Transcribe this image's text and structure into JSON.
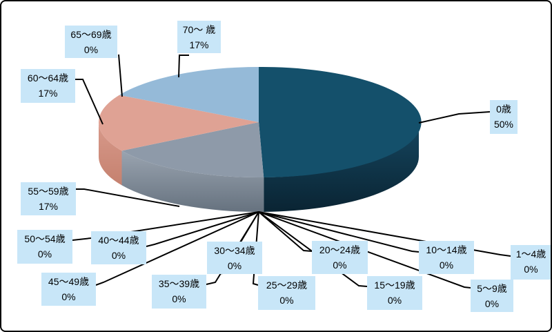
{
  "chart_data": {
    "type": "pie",
    "style": "3d",
    "unit": "%",
    "legend": "none",
    "title": "",
    "categories": [
      "0歳",
      "1〜4歳",
      "5〜9歳",
      "10〜14歳",
      "15〜19歳",
      "20〜24歳",
      "25〜29歳",
      "30〜34歳",
      "35〜39歳",
      "40〜44歳",
      "45〜49歳",
      "50〜54歳",
      "55〜59歳",
      "60〜64歳",
      "65〜69歳",
      "70〜 歳"
    ],
    "values": [
      50,
      0,
      0,
      0,
      0,
      0,
      0,
      0,
      0,
      0,
      0,
      0,
      17,
      17,
      0,
      17
    ],
    "slices": [
      {
        "label": "0歳",
        "percent_label": "50%",
        "value": 50,
        "color": "#14506B",
        "side_top": "#15465F",
        "side_bottom": "#0A2433"
      },
      {
        "label": "1〜4歳",
        "percent_label": "0%",
        "value": 0
      },
      {
        "label": "5〜9歳",
        "percent_label": "0%",
        "value": 0
      },
      {
        "label": "10〜14歳",
        "percent_label": "0%",
        "value": 0
      },
      {
        "label": "15〜19歳",
        "percent_label": "0%",
        "value": 0
      },
      {
        "label": "20〜24歳",
        "percent_label": "0%",
        "value": 0
      },
      {
        "label": "25〜29歳",
        "percent_label": "0%",
        "value": 0
      },
      {
        "label": "30〜34歳",
        "percent_label": "0%",
        "value": 0
      },
      {
        "label": "35〜39歳",
        "percent_label": "0%",
        "value": 0
      },
      {
        "label": "40〜44歳",
        "percent_label": "0%",
        "value": 0
      },
      {
        "label": "45〜49歳",
        "percent_label": "0%",
        "value": 0
      },
      {
        "label": "50〜54歳",
        "percent_label": "0%",
        "value": 0
      },
      {
        "label": "55〜59歳",
        "percent_label": "17%",
        "value": 17,
        "color": "#8E9AA9",
        "side_top": "#9AA4B0",
        "side_bottom": "#66727F"
      },
      {
        "label": "60〜64歳",
        "percent_label": "17%",
        "value": 17,
        "color": "#DFA294",
        "side_top": "#D89A8B",
        "side_bottom": "#C5816F"
      },
      {
        "label": "65〜69歳",
        "percent_label": "0%",
        "value": 0
      },
      {
        "label": "70〜 歳",
        "percent_label": "17%",
        "value": 17,
        "color": "#95BAD8"
      }
    ]
  },
  "colors": {
    "background": "#FFFFFF",
    "border": "#000000",
    "label_bg": "#C8E6F8",
    "leader_line": "#000000"
  }
}
